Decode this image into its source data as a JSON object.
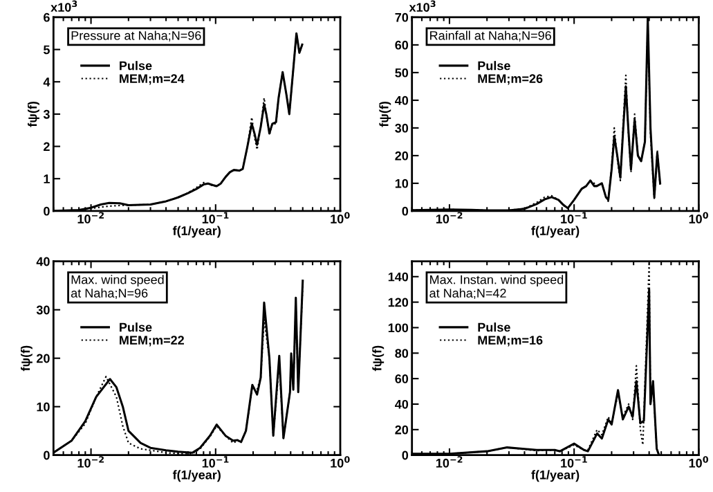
{
  "chart_data": [
    {
      "type": "line",
      "title": "Pressure at Naha;N=96",
      "xlabel": "f(1/year)",
      "ylabel": "fψ(f)",
      "log": "x",
      "legend": "top left",
      "grid": false,
      "xlim": [
        0.005,
        1
      ],
      "xticks": [
        {
          "value": 0.01,
          "label": "10$^{−2}$"
        },
        {
          "value": 0.1,
          "label": "10$^{−1}$"
        },
        {
          "value": 1,
          "label": "10$^{0}$"
        }
      ],
      "ylim": [
        0,
        6
      ],
      "yticks": [
        0,
        1,
        2,
        3,
        4,
        5,
        6
      ],
      "annotations": [
        "x10$^{3}$"
      ],
      "series": [
        {
          "name": "Pulse",
          "color": "#000000",
          "line_style": "solid",
          "x": [
            0.005,
            0.008,
            0.01,
            0.012,
            0.014,
            0.017,
            0.02,
            0.03,
            0.04,
            0.05,
            0.06,
            0.07,
            0.08,
            0.087,
            0.095,
            0.102,
            0.11,
            0.12,
            0.13,
            0.14,
            0.155,
            0.165,
            0.18,
            0.195,
            0.205,
            0.215,
            0.23,
            0.245,
            0.255,
            0.27,
            0.285,
            0.305,
            0.32,
            0.345,
            0.37,
            0.39,
            0.42,
            0.445,
            0.47,
            0.495
          ],
          "values": [
            0,
            0.03,
            0.1,
            0.2,
            0.25,
            0.24,
            0.18,
            0.2,
            0.3,
            0.42,
            0.55,
            0.68,
            0.82,
            0.85,
            0.8,
            0.77,
            0.85,
            1.05,
            1.2,
            1.27,
            1.25,
            1.3,
            2.0,
            2.7,
            2.4,
            2.05,
            2.6,
            3.3,
            3.0,
            2.4,
            2.7,
            2.75,
            3.5,
            4.3,
            3.6,
            3.0,
            4.4,
            5.5,
            4.9,
            5.15
          ]
        },
        {
          "name": "MEM;m=24",
          "color": "#000000",
          "line_style": "dotted",
          "x": [
            0.005,
            0.008,
            0.01,
            0.012,
            0.014,
            0.017,
            0.02,
            0.03,
            0.04,
            0.05,
            0.06,
            0.07,
            0.08,
            0.087,
            0.095,
            0.102,
            0.11,
            0.12,
            0.13,
            0.14,
            0.155,
            0.165,
            0.18,
            0.195,
            0.205,
            0.215,
            0.23,
            0.245,
            0.255,
            0.27,
            0.285,
            0.305,
            0.32,
            0.345,
            0.37,
            0.39,
            0.42,
            0.445,
            0.47,
            0.495
          ],
          "values": [
            0,
            0.02,
            0.08,
            0.12,
            0.15,
            0.17,
            0.18,
            0.2,
            0.3,
            0.42,
            0.56,
            0.72,
            0.88,
            0.85,
            0.78,
            0.76,
            0.85,
            1.05,
            1.2,
            1.27,
            1.25,
            1.3,
            2.0,
            2.9,
            2.3,
            1.9,
            2.6,
            3.5,
            3.0,
            2.35,
            2.7,
            2.7,
            3.5,
            4.3,
            3.6,
            3.0,
            4.4,
            5.5,
            4.9,
            5.15
          ]
        }
      ]
    },
    {
      "type": "line",
      "title": "Rainfall at Naha;N=96",
      "xlabel": "f(1/year)",
      "ylabel": "fψ(f)",
      "log": "x",
      "legend": "top left",
      "grid": false,
      "xlim": [
        0.005,
        1
      ],
      "xticks": [
        {
          "value": 0.01,
          "label": "10$^{−2}$"
        },
        {
          "value": 0.1,
          "label": "10$^{−1}$"
        },
        {
          "value": 1,
          "label": "10$^{0}$"
        }
      ],
      "ylim": [
        0,
        70
      ],
      "yticks": [
        0,
        10,
        20,
        30,
        40,
        50,
        60,
        70
      ],
      "annotations": [
        "x10$^{3}$"
      ],
      "series": [
        {
          "name": "Pulse",
          "color": "#000000",
          "line_style": "solid",
          "x": [
            0.005,
            0.01,
            0.015,
            0.02,
            0.03,
            0.04,
            0.05,
            0.058,
            0.066,
            0.075,
            0.082,
            0.089,
            0.1,
            0.115,
            0.125,
            0.135,
            0.145,
            0.152,
            0.167,
            0.18,
            0.188,
            0.2,
            0.21,
            0.222,
            0.235,
            0.248,
            0.26,
            0.272,
            0.286,
            0.306,
            0.325,
            0.345,
            0.37,
            0.39,
            0.41,
            0.44,
            0.465,
            0.49
          ],
          "values": [
            0.3,
            0.5,
            0.4,
            0.2,
            0.2,
            0.8,
            2.5,
            4.2,
            5,
            4,
            2.2,
            1,
            4,
            8,
            9,
            11,
            9,
            9,
            10,
            5,
            4,
            15,
            27,
            20,
            12,
            30,
            45,
            30,
            15,
            33,
            20,
            18,
            25,
            70,
            30,
            5,
            21,
            10
          ]
        },
        {
          "name": "MEM;m=26",
          "color": "#000000",
          "line_style": "dotted",
          "x": [
            0.005,
            0.01,
            0.015,
            0.02,
            0.03,
            0.04,
            0.05,
            0.058,
            0.066,
            0.075,
            0.082,
            0.089,
            0.1,
            0.115,
            0.125,
            0.135,
            0.145,
            0.152,
            0.167,
            0.18,
            0.188,
            0.2,
            0.21,
            0.222,
            0.235,
            0.248,
            0.26,
            0.272,
            0.286,
            0.306,
            0.325,
            0.345,
            0.37,
            0.39,
            0.41,
            0.44,
            0.465,
            0.49
          ],
          "values": [
            0.3,
            0.5,
            0.4,
            0.2,
            0.2,
            0.9,
            3,
            5,
            5.5,
            4,
            2,
            1,
            4,
            8,
            9,
            11,
            10,
            9,
            10,
            5,
            3.5,
            16,
            30,
            19,
            11,
            32,
            49,
            29,
            14,
            35,
            20,
            18,
            25,
            68,
            28,
            4,
            22,
            9
          ]
        }
      ]
    },
    {
      "type": "line",
      "title": "Max. wind speed\nat Naha;N=96",
      "xlabel": "f(1/year)",
      "ylabel": "fψ(f)",
      "log": "x",
      "legend": "top left",
      "grid": false,
      "xlim": [
        0.005,
        1
      ],
      "xticks": [
        {
          "value": 0.01,
          "label": "10$^{−2}$"
        },
        {
          "value": 0.1,
          "label": "10$^{−1}$"
        },
        {
          "value": 1,
          "label": "10$^{0}$"
        }
      ],
      "ylim": [
        0,
        40
      ],
      "yticks": [
        0,
        10,
        20,
        30,
        40
      ],
      "series": [
        {
          "name": "Pulse",
          "color": "#000000",
          "line_style": "solid",
          "x": [
            0.005,
            0.007,
            0.009,
            0.011,
            0.0142,
            0.016,
            0.018,
            0.02,
            0.025,
            0.03,
            0.04,
            0.05,
            0.065,
            0.075,
            0.09,
            0.102,
            0.12,
            0.138,
            0.15,
            0.16,
            0.175,
            0.197,
            0.215,
            0.23,
            0.245,
            0.27,
            0.29,
            0.324,
            0.35,
            0.395,
            0.404,
            0.42,
            0.44,
            0.46,
            0.5
          ],
          "values": [
            0.5,
            3,
            7,
            12,
            15.7,
            14,
            10,
            5,
            2.5,
            1.5,
            1,
            0.7,
            0.5,
            1.5,
            4,
            6.3,
            4,
            3,
            3.1,
            2.7,
            5,
            14.5,
            12.5,
            16,
            31.5,
            20,
            4,
            20.5,
            3.5,
            13,
            21,
            13.5,
            32.5,
            13,
            36
          ]
        },
        {
          "name": "MEM;m=22",
          "color": "#000000",
          "line_style": "dotted",
          "x": [
            0.005,
            0.007,
            0.009,
            0.011,
            0.0132,
            0.016,
            0.018,
            0.02,
            0.025,
            0.03,
            0.04,
            0.05,
            0.065,
            0.075,
            0.09,
            0.102,
            0.12,
            0.138,
            0.15,
            0.16,
            0.175,
            0.197,
            0.215,
            0.23,
            0.245,
            0.27,
            0.29,
            0.324,
            0.35,
            0.395,
            0.404,
            0.42,
            0.44,
            0.46,
            0.5
          ],
          "values": [
            0.5,
            3,
            6.5,
            12,
            16.2,
            12,
            6,
            2.5,
            1.3,
            1,
            0.5,
            0.3,
            0.3,
            1.3,
            3.8,
            6,
            4,
            2.5,
            3,
            2.7,
            5,
            14,
            13.5,
            16,
            28,
            20,
            4,
            19,
            3.5,
            13,
            20,
            14,
            31,
            14,
            35
          ]
        }
      ]
    },
    {
      "type": "line",
      "title": "Max. Instan. wind speed\nat Naha;N=42",
      "xlabel": "f(1/year)",
      "ylabel": "fψ(f)",
      "log": "x",
      "legend": "top left",
      "grid": false,
      "xlim": [
        0.005,
        1
      ],
      "xticks": [
        {
          "value": 0.01,
          "label": "10$^{−2}$"
        },
        {
          "value": 0.1,
          "label": "10$^{−1}$"
        },
        {
          "value": 1,
          "label": "10$^{0}$"
        }
      ],
      "ylim": [
        0,
        152
      ],
      "yticks": [
        0,
        20,
        40,
        60,
        80,
        100,
        120,
        140
      ],
      "series": [
        {
          "name": "Pulse",
          "color": "#000000",
          "line_style": "solid",
          "x": [
            0.005,
            0.01,
            0.02,
            0.029,
            0.05,
            0.07,
            0.077,
            0.1,
            0.12,
            0.129,
            0.153,
            0.167,
            0.188,
            0.2,
            0.225,
            0.246,
            0.274,
            0.295,
            0.316,
            0.34,
            0.363,
            0.4,
            0.41,
            0.43,
            0.46,
            0.48
          ],
          "values": [
            1,
            1,
            3,
            6,
            4,
            4,
            3,
            9,
            4,
            3,
            17,
            13,
            28,
            24,
            51,
            28,
            38,
            30,
            58,
            25,
            27,
            130,
            40,
            58,
            5,
            0
          ]
        },
        {
          "name": "MEM;m=16",
          "color": "#000000",
          "line_style": "dotted",
          "x": [
            0.005,
            0.01,
            0.02,
            0.029,
            0.05,
            0.07,
            0.077,
            0.1,
            0.12,
            0.129,
            0.153,
            0.167,
            0.188,
            0.2,
            0.225,
            0.246,
            0.274,
            0.295,
            0.316,
            0.34,
            0.356,
            0.4,
            0.41,
            0.43,
            0.46,
            0.48
          ],
          "values": [
            0.5,
            1,
            3,
            6,
            3.5,
            4,
            3,
            8,
            4,
            4,
            20,
            16,
            30,
            25,
            48,
            30,
            40,
            28,
            70,
            20,
            8,
            150,
            40,
            55,
            5,
            0
          ]
        }
      ]
    }
  ]
}
